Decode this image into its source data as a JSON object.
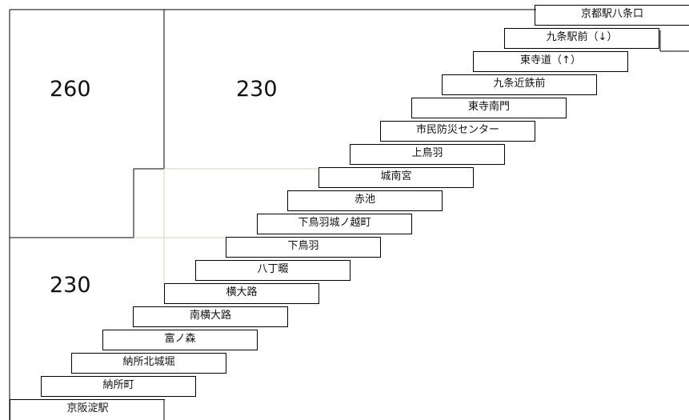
{
  "fares": {
    "zone_top_left": "260",
    "zone_top_middle": "230",
    "zone_bottom_left": "230"
  },
  "stops": [
    "京阪淀駅",
    "納所町",
    "納所北城堀",
    "富ノ森",
    "南横大路",
    "横大路",
    "八丁畷",
    "下鳥羽",
    "下鳥羽城ノ越町",
    "赤池",
    "城南宮",
    "上鳥羽",
    "市民防災センター",
    "東寺南門",
    "九条近鉄前",
    "東寺道（↑）",
    "九条駅前（↓）",
    "京都駅八条口"
  ],
  "colors": {
    "line": "#000000",
    "light_line": "#dcdcc8"
  }
}
